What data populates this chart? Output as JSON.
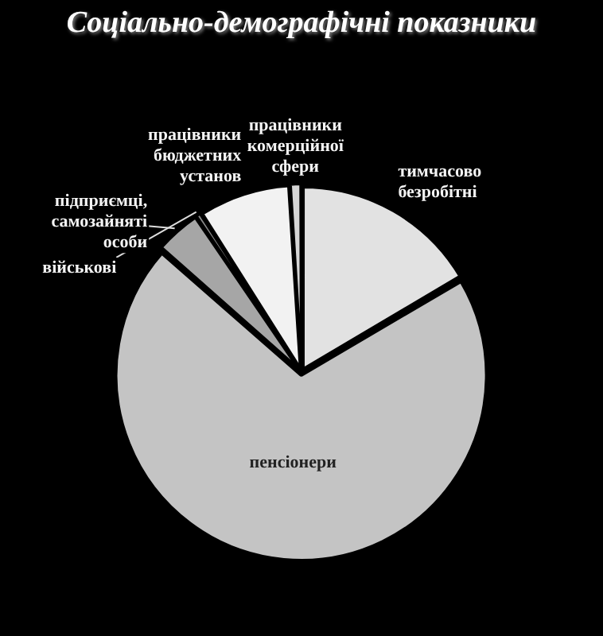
{
  "chart_data": {
    "type": "pie",
    "title": "Соціально-демографічні  показники",
    "categories": [
      "тимчасово безробітні",
      "пенсіонери",
      "підприємці, самозайняті особи",
      "військові",
      "працівники бюджетних установ",
      "працівники комерційної сфери"
    ],
    "values": [
      16.5,
      70,
      4,
      0.5,
      8,
      1
    ],
    "colors": [
      "#e2e2e2",
      "#c4c4c4",
      "#a6a6a6",
      "#8a8a8a",
      "#f2f2f2",
      "#d6d6d6"
    ],
    "legend": false
  }
}
